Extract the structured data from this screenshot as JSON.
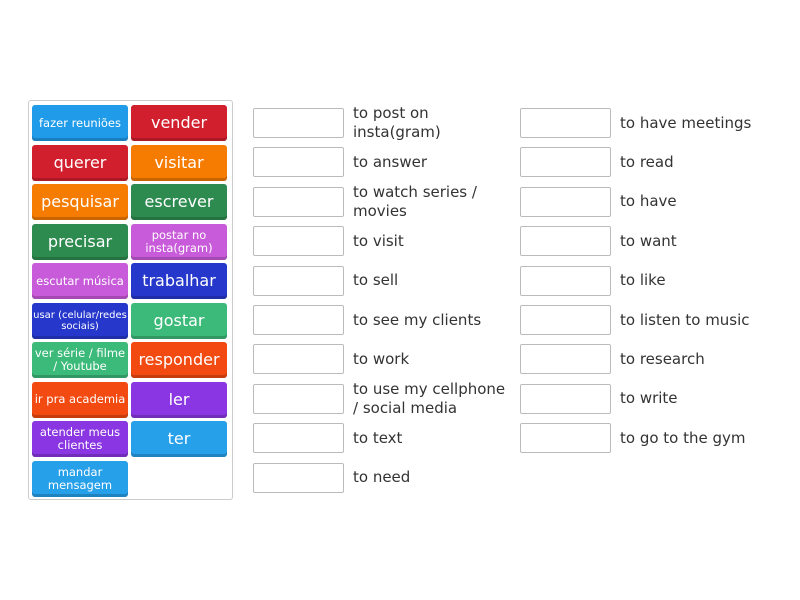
{
  "tiles": [
    {
      "text": "fazer reuniões",
      "color": "#1f9be9",
      "size": "sm"
    },
    {
      "text": "vender",
      "color": "#d21f2e",
      "size": "big"
    },
    {
      "text": "querer",
      "color": "#d21f2e",
      "size": "big"
    },
    {
      "text": "visitar",
      "color": "#f57c00",
      "size": "big"
    },
    {
      "text": "pesquisar",
      "color": "#f57c00",
      "size": "big"
    },
    {
      "text": "escrever",
      "color": "#2e8b50",
      "size": "big"
    },
    {
      "text": "precisar",
      "color": "#2e8b50",
      "size": "big"
    },
    {
      "text": "postar no insta(gram)",
      "color": "#c85bd9",
      "size": "sm"
    },
    {
      "text": "escutar música",
      "color": "#c85bd9",
      "size": "sm"
    },
    {
      "text": "trabalhar",
      "color": "#2638cc",
      "size": "big"
    },
    {
      "text": "usar (celular/redes sociais)",
      "color": "#2638cc",
      "size": "xs"
    },
    {
      "text": "gostar",
      "color": "#3cba7a",
      "size": "big"
    },
    {
      "text": "ver série / filme / Youtube",
      "color": "#3cba7a",
      "size": "sm"
    },
    {
      "text": "responder",
      "color": "#f24a10",
      "size": "big"
    },
    {
      "text": "ir pra academia",
      "color": "#f24a10",
      "size": "sm"
    },
    {
      "text": "ler",
      "color": "#8a36e2",
      "size": "big"
    },
    {
      "text": "atender meus clientes",
      "color": "#8a36e2",
      "size": "sm"
    },
    {
      "text": "ter",
      "color": "#27a0ea",
      "size": "big"
    },
    {
      "text": "mandar mensagem",
      "color": "#27a0ea",
      "size": "sm"
    }
  ],
  "targets_col1": [
    "to post on insta(gram)",
    "to answer",
    "to watch series / movies",
    "to visit",
    "to sell",
    "to see my clients",
    "to work",
    "to use my cellphone / social media",
    "to text",
    "to need"
  ],
  "targets_col2": [
    "to have meetings",
    "to read",
    "to have",
    "to want",
    "to like",
    "to listen to music",
    "to research",
    "to write",
    "to go to the gym"
  ]
}
